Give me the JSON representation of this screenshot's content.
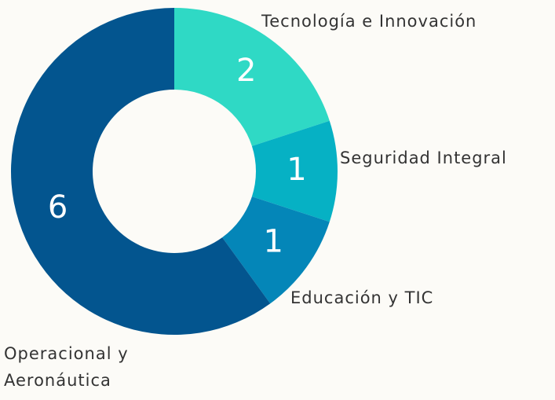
{
  "chart_data": {
    "type": "donut",
    "categories": [
      "Tecnología e Innovación",
      "Seguridad Integral",
      "Educación y TIC",
      "Operacional y Aeronáutica"
    ],
    "values": [
      2,
      1,
      1,
      6
    ],
    "colors": [
      "#2fd9c5",
      "#06b1c4",
      "#0486b8",
      "#03558f"
    ]
  }
}
